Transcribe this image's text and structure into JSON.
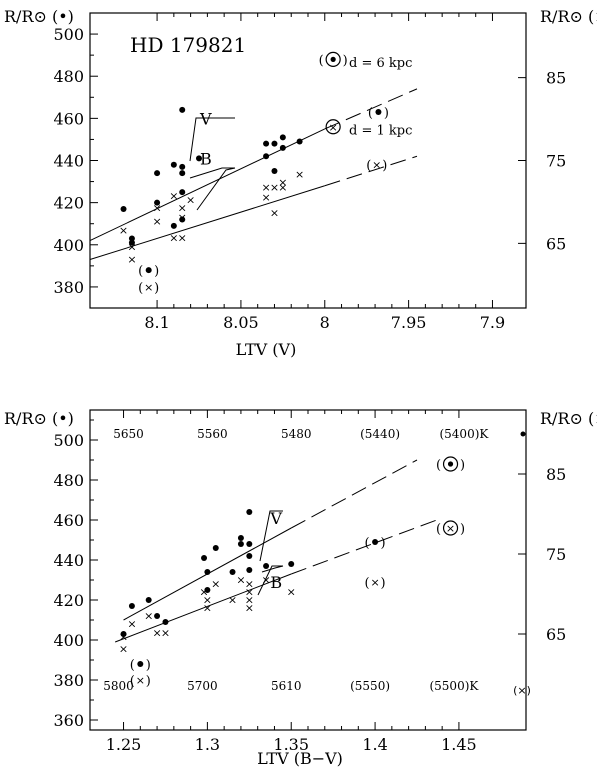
{
  "chart_data": [
    {
      "type": "scatter",
      "title": "HD 179821",
      "xlabel": "LTV (V)",
      "ylabel_left": "R/R⊙ (•)",
      "ylabel_right": "R/R⊙ (×)",
      "x_reversed": true,
      "xlim": [
        8.14,
        7.88
      ],
      "ylim_left": [
        370,
        510
      ],
      "ylim_right": [
        57.2,
        92.8
      ],
      "x_ticks": [
        8.1,
        8.05,
        8.0,
        7.95,
        7.9
      ],
      "x_tick_labels": [
        "8.1",
        "8.05",
        "8",
        "7.95",
        "7.9"
      ],
      "y_ticks_left": [
        380,
        400,
        420,
        440,
        460,
        480,
        500
      ],
      "y_ticks_right": [
        65,
        75,
        85
      ],
      "series": [
        {
          "marker": "dot",
          "axis": "left",
          "points": [
            {
              "x": 8.12,
              "y": 417
            },
            {
              "x": 8.115,
              "y": 403
            },
            {
              "x": 8.115,
              "y": 401
            },
            {
              "x": 8.1,
              "y": 434
            },
            {
              "x": 8.1,
              "y": 420
            },
            {
              "x": 8.09,
              "y": 438
            },
            {
              "x": 8.09,
              "y": 409
            },
            {
              "x": 8.085,
              "y": 464
            },
            {
              "x": 8.085,
              "y": 437
            },
            {
              "x": 8.085,
              "y": 434
            },
            {
              "x": 8.085,
              "y": 425
            },
            {
              "x": 8.085,
              "y": 412
            },
            {
              "x": 8.075,
              "y": 441
            },
            {
              "x": 8.035,
              "y": 448
            },
            {
              "x": 8.035,
              "y": 442
            },
            {
              "x": 8.03,
              "y": 448
            },
            {
              "x": 8.03,
              "y": 435
            },
            {
              "x": 8.025,
              "y": 446
            },
            {
              "x": 8.025,
              "y": 451
            },
            {
              "x": 8.015,
              "y": 449
            }
          ]
        },
        {
          "marker": "cross",
          "axis": "right",
          "points": [
            {
              "x": 8.12,
              "y": 66.6
            },
            {
              "x": 8.115,
              "y": 64.6
            },
            {
              "x": 8.115,
              "y": 63.1
            },
            {
              "x": 8.1,
              "y": 67.7
            },
            {
              "x": 8.1,
              "y": 69.3
            },
            {
              "x": 8.09,
              "y": 70.8
            },
            {
              "x": 8.09,
              "y": 65.7
            },
            {
              "x": 8.085,
              "y": 69.3
            },
            {
              "x": 8.085,
              "y": 68.2
            },
            {
              "x": 8.085,
              "y": 65.7
            },
            {
              "x": 8.08,
              "y": 70.3
            },
            {
              "x": 8.035,
              "y": 71.8
            },
            {
              "x": 8.035,
              "y": 70.6
            },
            {
              "x": 8.03,
              "y": 71.8
            },
            {
              "x": 8.03,
              "y": 68.7
            },
            {
              "x": 8.025,
              "y": 72.4
            },
            {
              "x": 8.025,
              "y": 71.8
            },
            {
              "x": 8.015,
              "y": 73.4
            }
          ]
        }
      ],
      "special_points": [
        {
          "x": 8.105,
          "y": 388,
          "marker": "dot-paren"
        },
        {
          "x": 8.105,
          "y": 380,
          "marker": "cross-paren"
        },
        {
          "x": 7.995,
          "y": 488,
          "marker": "circled-dot-paren"
        },
        {
          "x": 7.995,
          "y": 456,
          "marker": "circled-cross"
        },
        {
          "x": 7.968,
          "y": 463,
          "marker": "dot-paren"
        },
        {
          "x": 7.969,
          "y": 438,
          "marker": "cross-paren"
        }
      ],
      "fits": [
        {
          "label": "d = 6 kpc",
          "solid": [
            [
              8.14,
              402
            ],
            [
              8.0,
              455
            ]
          ],
          "dashed": [
            [
              8.0,
              455
            ],
            [
              7.945,
              474
            ]
          ]
        },
        {
          "label": "d = 1 kpc",
          "solid": [
            [
              8.14,
              393
            ],
            [
              8.0,
              428
            ]
          ],
          "dashed": [
            [
              8.0,
              428
            ],
            [
              7.945,
              442
            ]
          ]
        }
      ],
      "annotations": [
        {
          "text": "V",
          "x": 8.078,
          "y": 460
        },
        {
          "text": "B",
          "x": 8.078,
          "y": 441
        }
      ]
    },
    {
      "type": "scatter",
      "xlabel": "LTV (B−V)",
      "ylabel_left": "R/R⊙ (•)",
      "ylabel_right": "R/R⊙ (×)",
      "xlim": [
        1.23,
        1.49
      ],
      "ylim_left": [
        355,
        515
      ],
      "ylim_right": [
        53.0,
        93.0
      ],
      "x_ticks": [
        1.25,
        1.3,
        1.35,
        1.4,
        1.45
      ],
      "x_tick_labels": [
        "1.25",
        "1.3",
        "1.35",
        "1.4",
        "1.45"
      ],
      "y_ticks_left": [
        360,
        380,
        400,
        420,
        440,
        460,
        480,
        500
      ],
      "y_ticks_right": [
        65,
        75,
        85
      ],
      "top_axis_labels": [
        "5650",
        "5560",
        "5480",
        "(5440)",
        "(5400)K"
      ],
      "bottom_axis_labels": [
        "5800",
        "5700",
        "5610",
        "(5550)",
        "(5500)K"
      ],
      "series": [
        {
          "marker": "dot",
          "axis": "left",
          "points": [
            {
              "x": 1.25,
              "y": 403
            },
            {
              "x": 1.255,
              "y": 417
            },
            {
              "x": 1.265,
              "y": 420
            },
            {
              "x": 1.27,
              "y": 412
            },
            {
              "x": 1.275,
              "y": 409
            },
            {
              "x": 1.298,
              "y": 441
            },
            {
              "x": 1.3,
              "y": 434
            },
            {
              "x": 1.3,
              "y": 425
            },
            {
              "x": 1.305,
              "y": 446
            },
            {
              "x": 1.315,
              "y": 434
            },
            {
              "x": 1.32,
              "y": 451
            },
            {
              "x": 1.32,
              "y": 448
            },
            {
              "x": 1.325,
              "y": 464
            },
            {
              "x": 1.325,
              "y": 448
            },
            {
              "x": 1.325,
              "y": 442
            },
            {
              "x": 1.325,
              "y": 435
            },
            {
              "x": 1.335,
              "y": 437
            },
            {
              "x": 1.35,
              "y": 438
            }
          ]
        },
        {
          "marker": "cross",
          "axis": "right",
          "points": [
            {
              "x": 1.25,
              "y": 64.7
            },
            {
              "x": 1.25,
              "y": 63.2
            },
            {
              "x": 1.255,
              "y": 66.3
            },
            {
              "x": 1.265,
              "y": 67.3
            },
            {
              "x": 1.27,
              "y": 65.2
            },
            {
              "x": 1.275,
              "y": 65.2
            },
            {
              "x": 1.298,
              "y": 70.3
            },
            {
              "x": 1.3,
              "y": 69.3
            },
            {
              "x": 1.3,
              "y": 68.3
            },
            {
              "x": 1.305,
              "y": 71.3
            },
            {
              "x": 1.315,
              "y": 69.3
            },
            {
              "x": 1.32,
              "y": 71.8
            },
            {
              "x": 1.325,
              "y": 71.3
            },
            {
              "x": 1.325,
              "y": 70.3
            },
            {
              "x": 1.325,
              "y": 69.3
            },
            {
              "x": 1.325,
              "y": 68.3
            },
            {
              "x": 1.335,
              "y": 71.8
            },
            {
              "x": 1.35,
              "y": 70.3
            }
          ]
        }
      ],
      "special_points": [
        {
          "x": 1.26,
          "y": 388,
          "marker": "dot-paren"
        },
        {
          "x": 1.26,
          "y": 380,
          "marker": "cross-paren"
        },
        {
          "x": 1.445,
          "y": 488,
          "marker": "circled-dot-paren"
        },
        {
          "x": 1.445,
          "y": 456,
          "marker": "circled-cross-paren"
        },
        {
          "x": 1.4,
          "y": 449,
          "marker": "dot-paren"
        },
        {
          "x": 1.4,
          "y": 429,
          "marker": "cross-paren"
        }
      ],
      "fits": [
        {
          "label": "",
          "solid": [
            [
              1.25,
              410
            ],
            [
              1.35,
              456
            ]
          ],
          "dashed": [
            [
              1.35,
              456
            ],
            [
              1.425,
              490
            ]
          ]
        },
        {
          "label": "",
          "solid": [
            [
              1.245,
              399
            ],
            [
              1.35,
              433
            ]
          ],
          "dashed": [
            [
              1.35,
              433
            ],
            [
              1.44,
              461
            ]
          ]
        }
      ],
      "annotations": [
        {
          "text": "V",
          "x": 1.334,
          "y": 461
        },
        {
          "text": "B",
          "x": 1.334,
          "y": 429
        }
      ]
    }
  ]
}
